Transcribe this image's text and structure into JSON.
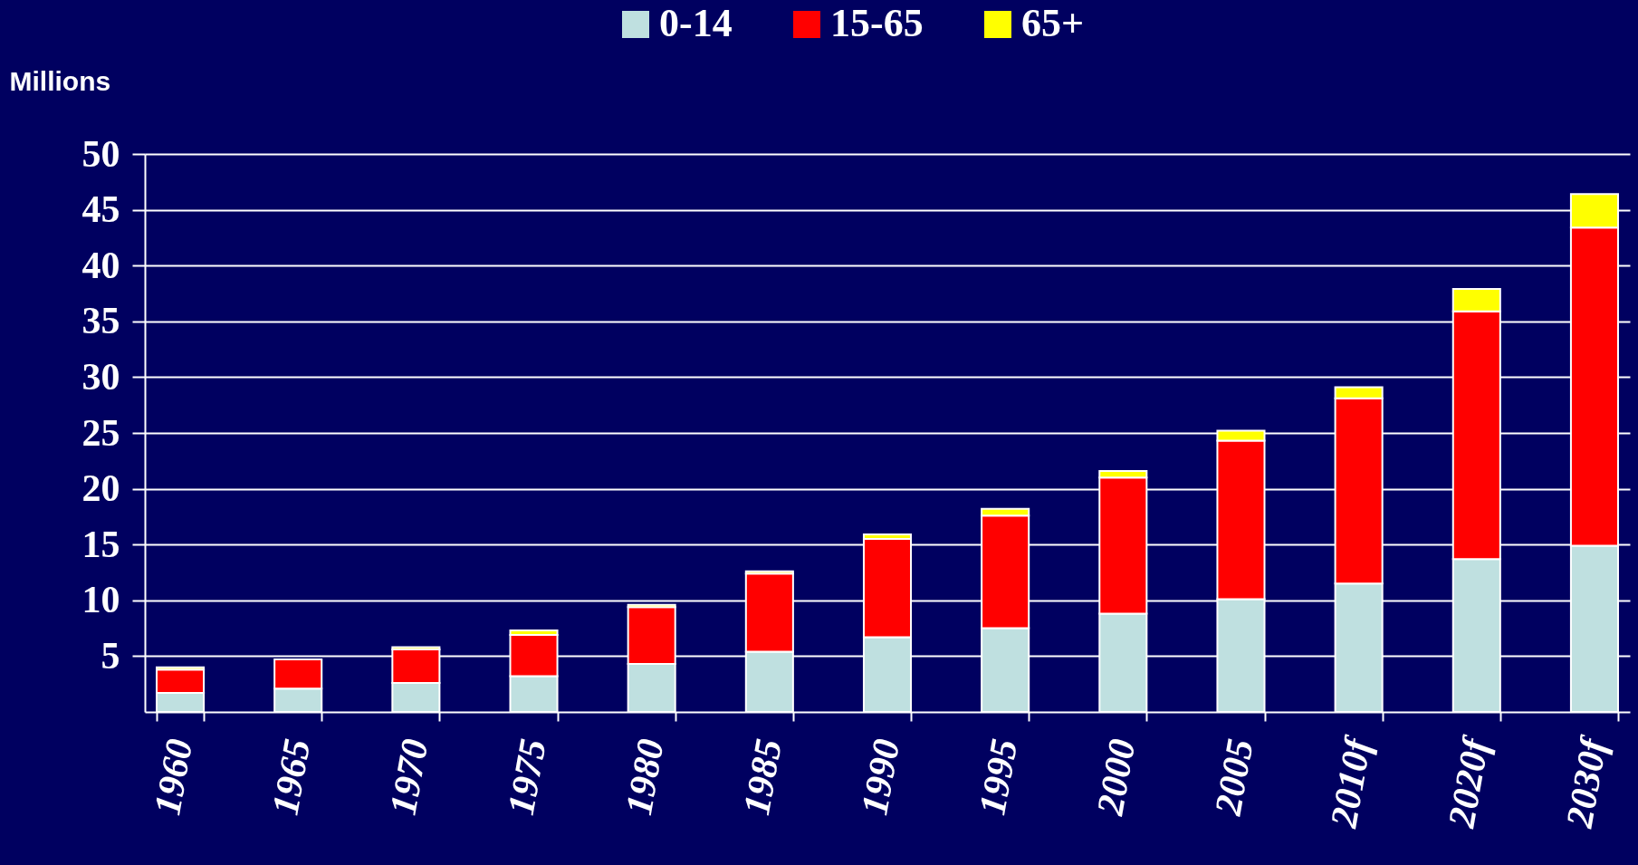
{
  "chart_data": {
    "type": "bar",
    "stacked": true,
    "ylabel": "Millions",
    "categories": [
      "1960",
      "1965",
      "1970",
      "1975",
      "1980",
      "1985",
      "1990",
      "1995",
      "2000",
      "2005",
      "2010f",
      "2020f",
      "2030f"
    ],
    "series": [
      {
        "name": "0-14",
        "color": "#bfe0e0",
        "values": [
          1.7,
          2.1,
          2.6,
          3.2,
          4.3,
          5.4,
          6.7,
          7.5,
          8.8,
          10.1,
          11.5,
          13.7,
          14.9
        ]
      },
      {
        "name": "15-65",
        "color": "#ff0000",
        "values": [
          2.1,
          2.6,
          3.0,
          3.7,
          5.1,
          7.0,
          8.8,
          10.1,
          12.2,
          14.2,
          16.6,
          22.2,
          28.5
        ]
      },
      {
        "name": "65+",
        "color": "#ffff00",
        "values": [
          0.2,
          null,
          0.2,
          0.4,
          0.2,
          0.2,
          0.4,
          0.6,
          0.6,
          0.9,
          1.0,
          2.0,
          3.0
        ]
      }
    ],
    "ylim": [
      0,
      50
    ],
    "yticks": [
      5,
      10,
      15,
      20,
      25,
      30,
      35,
      40,
      45,
      50
    ],
    "grid": "y",
    "legend": "top"
  }
}
